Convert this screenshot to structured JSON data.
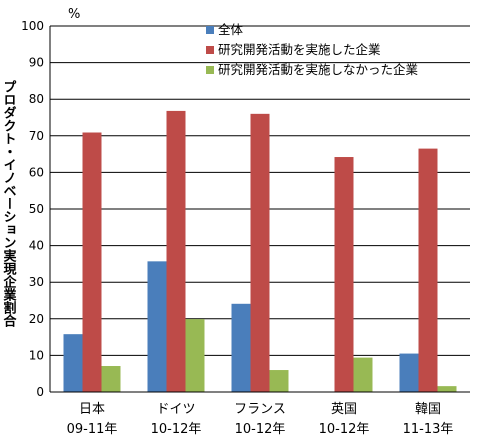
{
  "chart_data": {
    "type": "bar",
    "unit": "%",
    "ylabel": "プロダクト・イノベーション実現企業割合",
    "ylim": [
      0,
      100
    ],
    "yticks": [
      0,
      10,
      20,
      30,
      40,
      50,
      60,
      70,
      80,
      90,
      100
    ],
    "grid": true,
    "legend_position": "top-right",
    "categories": [
      {
        "name": "日本",
        "period": "09-11年"
      },
      {
        "name": "ドイツ",
        "period": "10-12年"
      },
      {
        "name": "フランス",
        "period": "10-12年"
      },
      {
        "name": "英国",
        "period": "10-12年"
      },
      {
        "name": "韓国",
        "period": "11-13年"
      }
    ],
    "series": [
      {
        "name": "全体",
        "color": "#4a7ebb",
        "values": [
          15.8,
          35.7,
          24.1,
          null,
          10.5
        ]
      },
      {
        "name": "研究開発活動を実施した企業",
        "color": "#be4b48",
        "values": [
          70.9,
          76.8,
          76.0,
          64.2,
          66.5
        ]
      },
      {
        "name": "研究開発活動を実施しなかった企業",
        "color": "#98b954",
        "values": [
          7.1,
          19.9,
          6.0,
          9.4,
          1.6
        ]
      }
    ]
  }
}
